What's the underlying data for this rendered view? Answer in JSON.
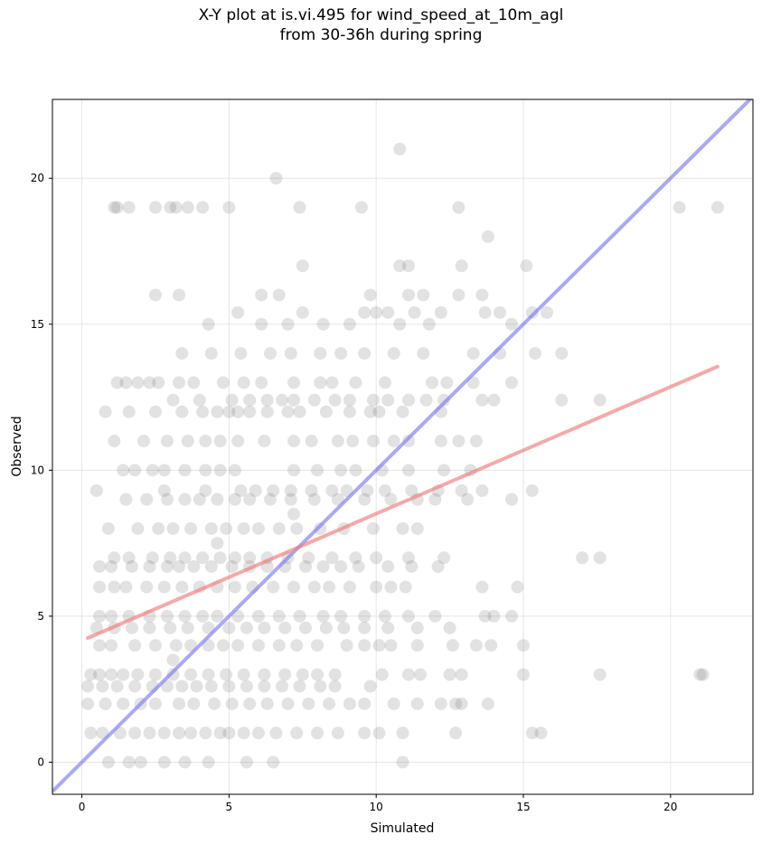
{
  "chart_data": {
    "type": "scatter",
    "title_line1": "X-Y plot at is.vi.495 for wind_speed_at_10m_agl",
    "title_line2": "from 30-36h during spring",
    "xlabel": "Simulated",
    "ylabel": "Observed",
    "xlim": [
      -1.0,
      22.8
    ],
    "ylim": [
      -1.1,
      22.7
    ],
    "xticks": [
      0,
      5,
      10,
      15,
      20
    ],
    "yticks": [
      0,
      5,
      10,
      15,
      20
    ],
    "grid": true,
    "colors": {
      "points": "#555555",
      "identity_line": "#7b7bf0",
      "regression_line": "#f07b7b",
      "grid": "#e6e6e6"
    },
    "identity_line": {
      "x": [
        -1.0,
        22.8
      ],
      "y": [
        -1.0,
        22.8
      ]
    },
    "regression_line": {
      "x": [
        0.2,
        21.6
      ],
      "y": [
        4.25,
        13.55
      ]
    },
    "points": [
      [
        10.8,
        21.0
      ],
      [
        6.6,
        20.0
      ],
      [
        1.1,
        19.0
      ],
      [
        1.2,
        19.0
      ],
      [
        1.6,
        19.0
      ],
      [
        2.5,
        19.0
      ],
      [
        3.0,
        19.0
      ],
      [
        3.2,
        19.0
      ],
      [
        3.6,
        19.0
      ],
      [
        4.1,
        19.0
      ],
      [
        5.0,
        19.0
      ],
      [
        7.4,
        19.0
      ],
      [
        9.5,
        19.0
      ],
      [
        12.8,
        19.0
      ],
      [
        20.3,
        19.0
      ],
      [
        21.6,
        19.0
      ],
      [
        13.8,
        18.0
      ],
      [
        7.5,
        17.0
      ],
      [
        10.8,
        17.0
      ],
      [
        11.1,
        17.0
      ],
      [
        12.9,
        17.0
      ],
      [
        15.1,
        17.0
      ],
      [
        2.5,
        16.0
      ],
      [
        3.3,
        16.0
      ],
      [
        6.1,
        16.0
      ],
      [
        6.7,
        16.0
      ],
      [
        9.8,
        16.0
      ],
      [
        11.1,
        16.0
      ],
      [
        11.6,
        16.0
      ],
      [
        12.8,
        16.0
      ],
      [
        13.6,
        16.0
      ],
      [
        5.3,
        15.4
      ],
      [
        7.5,
        15.4
      ],
      [
        9.6,
        15.4
      ],
      [
        10.0,
        15.4
      ],
      [
        10.4,
        15.4
      ],
      [
        11.3,
        15.4
      ],
      [
        12.2,
        15.4
      ],
      [
        13.7,
        15.4
      ],
      [
        14.2,
        15.4
      ],
      [
        15.3,
        15.4
      ],
      [
        15.8,
        15.4
      ],
      [
        4.3,
        15.0
      ],
      [
        6.1,
        15.0
      ],
      [
        7.0,
        15.0
      ],
      [
        8.2,
        15.0
      ],
      [
        9.1,
        15.0
      ],
      [
        10.8,
        15.0
      ],
      [
        11.8,
        15.0
      ],
      [
        14.6,
        15.0
      ],
      [
        3.4,
        14.0
      ],
      [
        4.4,
        14.0
      ],
      [
        5.4,
        14.0
      ],
      [
        6.4,
        14.0
      ],
      [
        7.1,
        14.0
      ],
      [
        8.1,
        14.0
      ],
      [
        8.8,
        14.0
      ],
      [
        9.6,
        14.0
      ],
      [
        10.6,
        14.0
      ],
      [
        11.6,
        14.0
      ],
      [
        13.3,
        14.0
      ],
      [
        14.2,
        14.0
      ],
      [
        15.4,
        14.0
      ],
      [
        16.3,
        14.0
      ],
      [
        1.2,
        13.0
      ],
      [
        1.5,
        13.0
      ],
      [
        1.9,
        13.0
      ],
      [
        2.3,
        13.0
      ],
      [
        2.6,
        13.0
      ],
      [
        3.3,
        13.0
      ],
      [
        3.8,
        13.0
      ],
      [
        4.8,
        13.0
      ],
      [
        5.5,
        13.0
      ],
      [
        6.1,
        13.0
      ],
      [
        7.2,
        13.0
      ],
      [
        8.1,
        13.0
      ],
      [
        8.5,
        13.0
      ],
      [
        9.3,
        13.0
      ],
      [
        10.3,
        13.0
      ],
      [
        11.9,
        13.0
      ],
      [
        12.4,
        13.0
      ],
      [
        13.3,
        13.0
      ],
      [
        14.6,
        13.0
      ],
      [
        3.1,
        12.4
      ],
      [
        4.0,
        12.4
      ],
      [
        5.1,
        12.4
      ],
      [
        5.7,
        12.4
      ],
      [
        6.3,
        12.4
      ],
      [
        6.8,
        12.4
      ],
      [
        7.2,
        12.4
      ],
      [
        7.9,
        12.4
      ],
      [
        8.6,
        12.4
      ],
      [
        9.1,
        12.4
      ],
      [
        9.9,
        12.4
      ],
      [
        10.4,
        12.4
      ],
      [
        11.1,
        12.4
      ],
      [
        11.7,
        12.4
      ],
      [
        12.3,
        12.4
      ],
      [
        13.6,
        12.4
      ],
      [
        14.0,
        12.4
      ],
      [
        16.3,
        12.4
      ],
      [
        17.6,
        12.4
      ],
      [
        0.8,
        12.0
      ],
      [
        1.6,
        12.0
      ],
      [
        2.5,
        12.0
      ],
      [
        3.4,
        12.0
      ],
      [
        4.1,
        12.0
      ],
      [
        4.6,
        12.0
      ],
      [
        5.0,
        12.0
      ],
      [
        5.3,
        12.0
      ],
      [
        5.7,
        12.0
      ],
      [
        6.3,
        12.0
      ],
      [
        7.0,
        12.0
      ],
      [
        7.4,
        12.0
      ],
      [
        8.3,
        12.0
      ],
      [
        9.1,
        12.0
      ],
      [
        9.8,
        12.0
      ],
      [
        10.1,
        12.0
      ],
      [
        10.9,
        12.0
      ],
      [
        12.2,
        12.0
      ],
      [
        1.1,
        11.0
      ],
      [
        2.1,
        11.0
      ],
      [
        2.9,
        11.0
      ],
      [
        3.6,
        11.0
      ],
      [
        4.2,
        11.0
      ],
      [
        4.7,
        11.0
      ],
      [
        5.3,
        11.0
      ],
      [
        6.2,
        11.0
      ],
      [
        7.2,
        11.0
      ],
      [
        7.8,
        11.0
      ],
      [
        8.7,
        11.0
      ],
      [
        9.2,
        11.0
      ],
      [
        9.9,
        11.0
      ],
      [
        10.6,
        11.0
      ],
      [
        11.1,
        11.0
      ],
      [
        12.2,
        11.0
      ],
      [
        12.8,
        11.0
      ],
      [
        13.4,
        11.0
      ],
      [
        1.4,
        10.0
      ],
      [
        1.8,
        10.0
      ],
      [
        2.4,
        10.0
      ],
      [
        2.8,
        10.0
      ],
      [
        3.5,
        10.0
      ],
      [
        4.2,
        10.0
      ],
      [
        4.7,
        10.0
      ],
      [
        5.2,
        10.0
      ],
      [
        7.2,
        10.0
      ],
      [
        8.0,
        10.0
      ],
      [
        8.8,
        10.0
      ],
      [
        9.3,
        10.0
      ],
      [
        10.2,
        10.0
      ],
      [
        11.1,
        10.0
      ],
      [
        12.3,
        10.0
      ],
      [
        13.2,
        10.0
      ],
      [
        0.5,
        9.3
      ],
      [
        2.8,
        9.3
      ],
      [
        4.2,
        9.3
      ],
      [
        5.4,
        9.3
      ],
      [
        5.9,
        9.3
      ],
      [
        6.5,
        9.3
      ],
      [
        7.1,
        9.3
      ],
      [
        7.8,
        9.3
      ],
      [
        8.5,
        9.3
      ],
      [
        9.0,
        9.3
      ],
      [
        9.7,
        9.3
      ],
      [
        10.3,
        9.3
      ],
      [
        11.2,
        9.3
      ],
      [
        12.1,
        9.3
      ],
      [
        12.9,
        9.3
      ],
      [
        13.6,
        9.3
      ],
      [
        15.3,
        9.3
      ],
      [
        1.5,
        9.0
      ],
      [
        2.2,
        9.0
      ],
      [
        2.9,
        9.0
      ],
      [
        3.5,
        9.0
      ],
      [
        4.0,
        9.0
      ],
      [
        4.6,
        9.0
      ],
      [
        5.2,
        9.0
      ],
      [
        5.7,
        9.0
      ],
      [
        6.4,
        9.0
      ],
      [
        7.1,
        9.0
      ],
      [
        7.9,
        9.0
      ],
      [
        8.7,
        9.0
      ],
      [
        9.6,
        9.0
      ],
      [
        10.5,
        9.0
      ],
      [
        11.4,
        9.0
      ],
      [
        12.0,
        9.0
      ],
      [
        13.1,
        9.0
      ],
      [
        14.6,
        9.0
      ],
      [
        7.2,
        8.5
      ],
      [
        0.9,
        8.0
      ],
      [
        1.9,
        8.0
      ],
      [
        2.6,
        8.0
      ],
      [
        3.1,
        8.0
      ],
      [
        3.7,
        8.0
      ],
      [
        4.4,
        8.0
      ],
      [
        4.9,
        8.0
      ],
      [
        5.5,
        8.0
      ],
      [
        6.0,
        8.0
      ],
      [
        6.7,
        8.0
      ],
      [
        7.3,
        8.0
      ],
      [
        8.1,
        8.0
      ],
      [
        8.9,
        8.0
      ],
      [
        9.9,
        8.0
      ],
      [
        10.9,
        8.0
      ],
      [
        11.4,
        8.0
      ],
      [
        4.6,
        7.5
      ],
      [
        1.1,
        7.0
      ],
      [
        1.6,
        7.0
      ],
      [
        2.4,
        7.0
      ],
      [
        3.0,
        7.0
      ],
      [
        3.5,
        7.0
      ],
      [
        4.1,
        7.0
      ],
      [
        4.7,
        7.0
      ],
      [
        5.2,
        7.0
      ],
      [
        5.7,
        7.0
      ],
      [
        6.3,
        7.0
      ],
      [
        7.0,
        7.0
      ],
      [
        7.7,
        7.0
      ],
      [
        8.5,
        7.0
      ],
      [
        9.3,
        7.0
      ],
      [
        10.0,
        7.0
      ],
      [
        11.1,
        7.0
      ],
      [
        12.3,
        7.0
      ],
      [
        17.0,
        7.0
      ],
      [
        17.6,
        7.0
      ],
      [
        0.6,
        6.7
      ],
      [
        1.0,
        6.7
      ],
      [
        1.7,
        6.7
      ],
      [
        2.3,
        6.7
      ],
      [
        2.9,
        6.7
      ],
      [
        3.3,
        6.7
      ],
      [
        3.8,
        6.7
      ],
      [
        4.4,
        6.7
      ],
      [
        5.1,
        6.7
      ],
      [
        5.7,
        6.7
      ],
      [
        6.3,
        6.7
      ],
      [
        6.9,
        6.7
      ],
      [
        7.6,
        6.7
      ],
      [
        8.2,
        6.7
      ],
      [
        8.8,
        6.7
      ],
      [
        9.4,
        6.7
      ],
      [
        10.4,
        6.7
      ],
      [
        11.2,
        6.7
      ],
      [
        12.1,
        6.7
      ],
      [
        0.6,
        6.0
      ],
      [
        1.1,
        6.0
      ],
      [
        1.5,
        6.0
      ],
      [
        2.2,
        6.0
      ],
      [
        2.8,
        6.0
      ],
      [
        3.4,
        6.0
      ],
      [
        4.0,
        6.0
      ],
      [
        4.6,
        6.0
      ],
      [
        5.2,
        6.0
      ],
      [
        5.8,
        6.0
      ],
      [
        6.5,
        6.0
      ],
      [
        7.2,
        6.0
      ],
      [
        7.9,
        6.0
      ],
      [
        8.4,
        6.0
      ],
      [
        9.1,
        6.0
      ],
      [
        10.0,
        6.0
      ],
      [
        10.5,
        6.0
      ],
      [
        11.0,
        6.0
      ],
      [
        13.6,
        6.0
      ],
      [
        14.8,
        6.0
      ],
      [
        0.6,
        5.0
      ],
      [
        1.0,
        5.0
      ],
      [
        1.6,
        5.0
      ],
      [
        2.3,
        5.0
      ],
      [
        2.9,
        5.0
      ],
      [
        3.5,
        5.0
      ],
      [
        4.1,
        5.0
      ],
      [
        4.6,
        5.0
      ],
      [
        5.3,
        5.0
      ],
      [
        6.0,
        5.0
      ],
      [
        6.7,
        5.0
      ],
      [
        7.4,
        5.0
      ],
      [
        8.2,
        5.0
      ],
      [
        8.8,
        5.0
      ],
      [
        9.6,
        5.0
      ],
      [
        10.3,
        5.0
      ],
      [
        11.1,
        5.0
      ],
      [
        12.0,
        5.0
      ],
      [
        13.7,
        5.0
      ],
      [
        14.0,
        5.0
      ],
      [
        14.6,
        5.0
      ],
      [
        0.5,
        4.6
      ],
      [
        1.1,
        4.6
      ],
      [
        1.7,
        4.6
      ],
      [
        2.3,
        4.6
      ],
      [
        3.0,
        4.6
      ],
      [
        3.6,
        4.6
      ],
      [
        4.3,
        4.6
      ],
      [
        5.0,
        4.6
      ],
      [
        5.6,
        4.6
      ],
      [
        6.2,
        4.6
      ],
      [
        6.9,
        4.6
      ],
      [
        7.6,
        4.6
      ],
      [
        8.3,
        4.6
      ],
      [
        8.9,
        4.6
      ],
      [
        9.6,
        4.6
      ],
      [
        10.4,
        4.6
      ],
      [
        11.4,
        4.6
      ],
      [
        12.5,
        4.6
      ],
      [
        0.6,
        4.0
      ],
      [
        1.0,
        4.0
      ],
      [
        1.8,
        4.0
      ],
      [
        2.5,
        4.0
      ],
      [
        3.2,
        4.0
      ],
      [
        3.7,
        4.0
      ],
      [
        4.3,
        4.0
      ],
      [
        4.8,
        4.0
      ],
      [
        5.3,
        4.0
      ],
      [
        6.0,
        4.0
      ],
      [
        6.7,
        4.0
      ],
      [
        7.3,
        4.0
      ],
      [
        8.0,
        4.0
      ],
      [
        9.0,
        4.0
      ],
      [
        9.6,
        4.0
      ],
      [
        10.1,
        4.0
      ],
      [
        10.5,
        4.0
      ],
      [
        11.4,
        4.0
      ],
      [
        12.6,
        4.0
      ],
      [
        13.4,
        4.0
      ],
      [
        13.9,
        4.0
      ],
      [
        15.0,
        4.0
      ],
      [
        3.1,
        3.5
      ],
      [
        0.3,
        3.0
      ],
      [
        0.6,
        3.0
      ],
      [
        1.0,
        3.0
      ],
      [
        1.4,
        3.0
      ],
      [
        1.9,
        3.0
      ],
      [
        2.5,
        3.0
      ],
      [
        3.1,
        3.0
      ],
      [
        3.7,
        3.0
      ],
      [
        4.3,
        3.0
      ],
      [
        4.9,
        3.0
      ],
      [
        5.5,
        3.0
      ],
      [
        6.2,
        3.0
      ],
      [
        6.9,
        3.0
      ],
      [
        7.5,
        3.0
      ],
      [
        8.0,
        3.0
      ],
      [
        8.6,
        3.0
      ],
      [
        10.2,
        3.0
      ],
      [
        11.1,
        3.0
      ],
      [
        11.5,
        3.0
      ],
      [
        12.5,
        3.0
      ],
      [
        12.9,
        3.0
      ],
      [
        15.0,
        3.0
      ],
      [
        17.6,
        3.0
      ],
      [
        21.0,
        3.0
      ],
      [
        21.1,
        3.0
      ],
      [
        0.2,
        2.6
      ],
      [
        0.7,
        2.6
      ],
      [
        1.2,
        2.6
      ],
      [
        1.8,
        2.6
      ],
      [
        2.4,
        2.6
      ],
      [
        2.9,
        2.6
      ],
      [
        3.4,
        2.6
      ],
      [
        3.9,
        2.6
      ],
      [
        4.4,
        2.6
      ],
      [
        5.0,
        2.6
      ],
      [
        5.6,
        2.6
      ],
      [
        6.2,
        2.6
      ],
      [
        6.8,
        2.6
      ],
      [
        7.4,
        2.6
      ],
      [
        8.1,
        2.6
      ],
      [
        8.6,
        2.6
      ],
      [
        9.8,
        2.6
      ],
      [
        0.2,
        2.0
      ],
      [
        0.8,
        2.0
      ],
      [
        1.4,
        2.0
      ],
      [
        2.0,
        2.0
      ],
      [
        2.5,
        2.0
      ],
      [
        3.3,
        2.0
      ],
      [
        3.8,
        2.0
      ],
      [
        4.5,
        2.0
      ],
      [
        5.1,
        2.0
      ],
      [
        5.7,
        2.0
      ],
      [
        6.3,
        2.0
      ],
      [
        7.0,
        2.0
      ],
      [
        7.7,
        2.0
      ],
      [
        8.4,
        2.0
      ],
      [
        9.1,
        2.0
      ],
      [
        9.6,
        2.0
      ],
      [
        10.6,
        2.0
      ],
      [
        11.4,
        2.0
      ],
      [
        12.2,
        2.0
      ],
      [
        12.7,
        2.0
      ],
      [
        12.9,
        2.0
      ],
      [
        13.8,
        2.0
      ],
      [
        0.3,
        1.0
      ],
      [
        0.7,
        1.0
      ],
      [
        1.3,
        1.0
      ],
      [
        1.8,
        1.0
      ],
      [
        2.3,
        1.0
      ],
      [
        2.8,
        1.0
      ],
      [
        3.3,
        1.0
      ],
      [
        3.7,
        1.0
      ],
      [
        4.2,
        1.0
      ],
      [
        4.7,
        1.0
      ],
      [
        5.0,
        1.0
      ],
      [
        5.5,
        1.0
      ],
      [
        6.0,
        1.0
      ],
      [
        6.6,
        1.0
      ],
      [
        7.3,
        1.0
      ],
      [
        8.0,
        1.0
      ],
      [
        8.7,
        1.0
      ],
      [
        9.6,
        1.0
      ],
      [
        10.1,
        1.0
      ],
      [
        10.9,
        1.0
      ],
      [
        12.7,
        1.0
      ],
      [
        15.3,
        1.0
      ],
      [
        15.6,
        1.0
      ],
      [
        0.9,
        0.0
      ],
      [
        1.6,
        0.0
      ],
      [
        2.0,
        0.0
      ],
      [
        2.8,
        0.0
      ],
      [
        3.5,
        0.0
      ],
      [
        4.3,
        0.0
      ],
      [
        5.6,
        0.0
      ],
      [
        6.5,
        0.0
      ],
      [
        10.9,
        0.0
      ]
    ]
  }
}
